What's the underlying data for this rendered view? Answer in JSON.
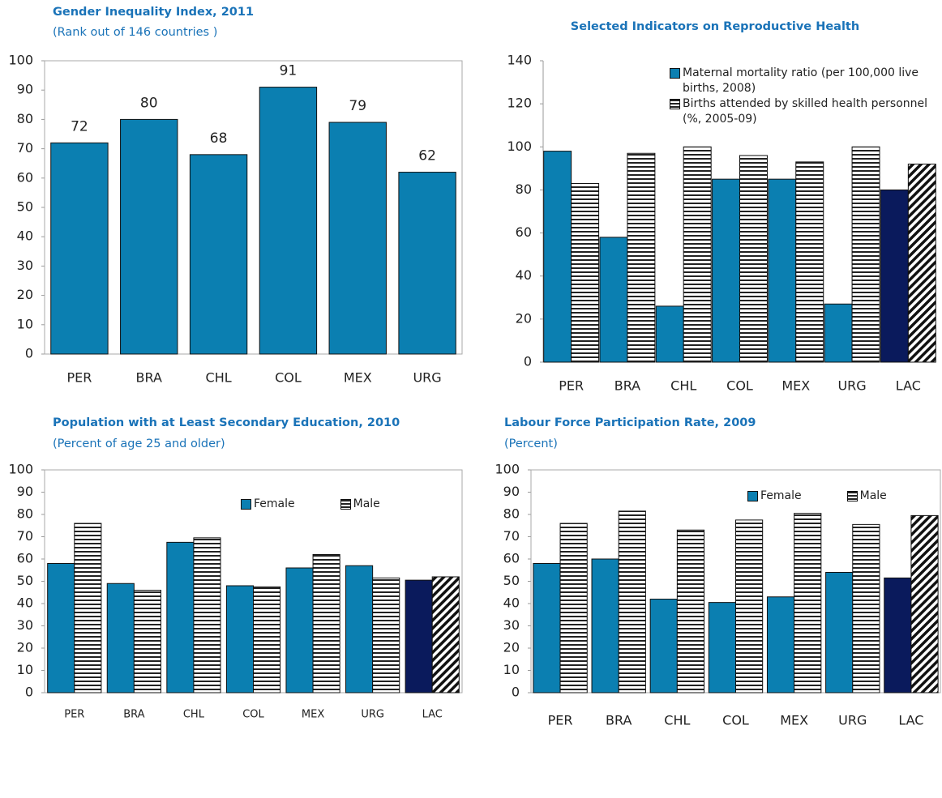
{
  "chart_data": [
    {
      "type": "bar",
      "title": "Gender Inequality Index, 2011",
      "subtitle": "(Rank out of 146 countries )",
      "categories": [
        "PER",
        "BRA",
        "CHL",
        "COL",
        "MEX",
        "URG"
      ],
      "values": [
        72,
        80,
        68,
        91,
        79,
        62
      ],
      "color": "#0b7fb1",
      "data_labels": true,
      "frame": true,
      "ylim": [
        0,
        100
      ],
      "yticks": [
        0,
        10,
        20,
        30,
        40,
        50,
        60,
        70,
        80,
        90,
        100
      ]
    },
    {
      "type": "bar",
      "title": "Selected  Indicators on Reproductive Health",
      "categories": [
        "PER",
        "BRA",
        "CHL",
        "COL",
        "MEX",
        "URG",
        "LAC"
      ],
      "series": [
        {
          "name": "Maternal mortality ratio (per 100,000 live births, 2008)",
          "values": [
            98,
            58,
            26,
            85,
            85,
            27,
            80
          ],
          "fills": [
            "#0b7fb1",
            "#0b7fb1",
            "#0b7fb1",
            "#0b7fb1",
            "#0b7fb1",
            "#0b7fb1",
            "#0a1a5c"
          ]
        },
        {
          "name": "Births attended by skilled  health personnel (%, 2005-09)",
          "values": [
            83,
            97,
            100,
            96,
            93,
            100,
            92
          ],
          "fills": [
            "horizontal",
            "horizontal",
            "horizontal",
            "horizontal",
            "horizontal",
            "horizontal",
            "diagonal"
          ]
        }
      ],
      "frame": false,
      "ylim": [
        0,
        140
      ],
      "yticks": [
        0,
        20,
        40,
        60,
        80,
        100,
        120,
        140
      ]
    },
    {
      "type": "bar",
      "title": "Population with at Least Secondary Education, 2010",
      "subtitle": "(Percent of age 25 and older)",
      "categories": [
        "PER",
        "BRA",
        "CHL",
        "COL",
        "MEX",
        "URG",
        "LAC"
      ],
      "series": [
        {
          "name": "Female",
          "values": [
            58,
            49,
            67.5,
            48,
            56,
            57,
            50.5
          ],
          "fills": [
            "#0b7fb1",
            "#0b7fb1",
            "#0b7fb1",
            "#0b7fb1",
            "#0b7fb1",
            "#0b7fb1",
            "#0a1a5c"
          ]
        },
        {
          "name": "Male",
          "values": [
            76,
            46,
            69.5,
            47.5,
            62,
            51.5,
            52
          ],
          "fills": [
            "horizontal",
            "horizontal",
            "horizontal",
            "horizontal",
            "horizontal",
            "horizontal",
            "diagonal"
          ]
        }
      ],
      "frame": true,
      "ylim": [
        0,
        100
      ],
      "yticks": [
        0,
        10,
        20,
        30,
        40,
        50,
        60,
        70,
        80,
        90,
        100
      ]
    },
    {
      "type": "bar",
      "title": "Labour Force Participation Rate, 2009",
      "subtitle": "(Percent)",
      "categories": [
        "PER",
        "BRA",
        "CHL",
        "COL",
        "MEX",
        "URG",
        "LAC"
      ],
      "series": [
        {
          "name": "Female",
          "values": [
            58,
            60,
            42,
            40.5,
            43,
            54,
            51.5
          ],
          "fills": [
            "#0b7fb1",
            "#0b7fb1",
            "#0b7fb1",
            "#0b7fb1",
            "#0b7fb1",
            "#0b7fb1",
            "#0a1a5c"
          ]
        },
        {
          "name": "Male",
          "values": [
            76,
            81.5,
            73,
            77.5,
            80.5,
            75.5,
            79.5
          ],
          "fills": [
            "horizontal",
            "horizontal",
            "horizontal",
            "horizontal",
            "horizontal",
            "horizontal",
            "diagonal"
          ]
        }
      ],
      "frame": true,
      "ylim": [
        0,
        100
      ],
      "yticks": [
        0,
        10,
        20,
        30,
        40,
        50,
        60,
        70,
        80,
        90,
        100
      ]
    }
  ]
}
